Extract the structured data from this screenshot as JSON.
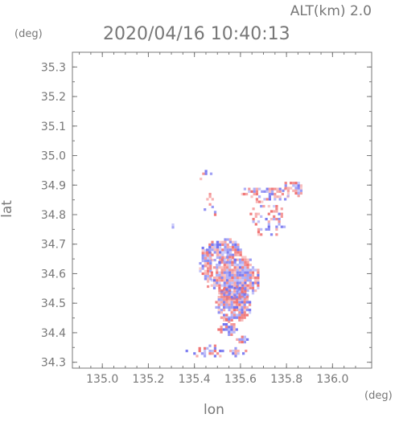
{
  "chart_data": {
    "type": "heatmap",
    "title": "2020/04/16 10:40:13",
    "subtitle": "ALT(km) 2.0",
    "xlabel": "lon",
    "ylabel": "lat",
    "x_unit": "(deg)",
    "y_unit": "(deg)",
    "xlim": [
      134.87,
      136.17
    ],
    "ylim": [
      34.28,
      35.35
    ],
    "xticks": [
      135.0,
      135.2,
      135.4,
      135.6,
      135.8,
      136.0
    ],
    "yticks": [
      34.3,
      34.4,
      34.5,
      34.6,
      34.7,
      34.8,
      34.9,
      35.0,
      35.1,
      35.2,
      35.3
    ],
    "xtick_labels": [
      "135.0",
      "135.2",
      "135.4",
      "135.6",
      "135.8",
      "136.0"
    ],
    "ytick_labels": [
      "34.3",
      "34.4",
      "34.5",
      "34.6",
      "34.7",
      "34.8",
      "34.9",
      "35.0",
      "35.1",
      "35.2",
      "35.3"
    ],
    "grid": false,
    "colors": {
      "positive": "#f07070",
      "negative": "#7070f0",
      "frame": "#777777"
    },
    "echo_regions": [
      {
        "lon": [
          135.4,
          135.47
        ],
        "lat": [
          34.92,
          34.96
        ],
        "density": 0.3
      },
      {
        "lon": [
          135.44,
          135.49
        ],
        "lat": [
          34.78,
          34.9
        ],
        "density": 0.25
      },
      {
        "lon": [
          135.58,
          135.62
        ],
        "lat": [
          34.87,
          34.9
        ],
        "density": 0.4
      },
      {
        "lon": [
          135.61,
          135.81
        ],
        "lat": [
          34.84,
          34.9
        ],
        "density": 0.6
      },
      {
        "lon": [
          135.78,
          135.86
        ],
        "lat": [
          34.86,
          34.92
        ],
        "density": 0.7
      },
      {
        "lon": [
          135.64,
          135.79
        ],
        "lat": [
          34.73,
          34.85
        ],
        "density": 0.4
      },
      {
        "lon": [
          135.29,
          135.31
        ],
        "lat": [
          34.75,
          34.77
        ],
        "density": 0.9
      },
      {
        "lon": [
          135.42,
          135.47
        ],
        "lat": [
          34.56,
          34.7
        ],
        "density": 0.75
      },
      {
        "lon": [
          135.45,
          135.6
        ],
        "lat": [
          34.64,
          34.72
        ],
        "density": 0.85
      },
      {
        "lon": [
          135.47,
          135.68
        ],
        "lat": [
          34.52,
          34.66
        ],
        "density": 0.95
      },
      {
        "lon": [
          135.49,
          135.64
        ],
        "lat": [
          34.44,
          34.56
        ],
        "density": 0.9
      },
      {
        "lon": [
          135.5,
          135.58
        ],
        "lat": [
          34.39,
          34.45
        ],
        "density": 0.7
      },
      {
        "lon": [
          135.58,
          135.63
        ],
        "lat": [
          34.37,
          34.39
        ],
        "density": 0.8
      },
      {
        "lon": [
          135.35,
          135.62
        ],
        "lat": [
          34.32,
          34.36
        ],
        "density": 0.45
      }
    ]
  }
}
